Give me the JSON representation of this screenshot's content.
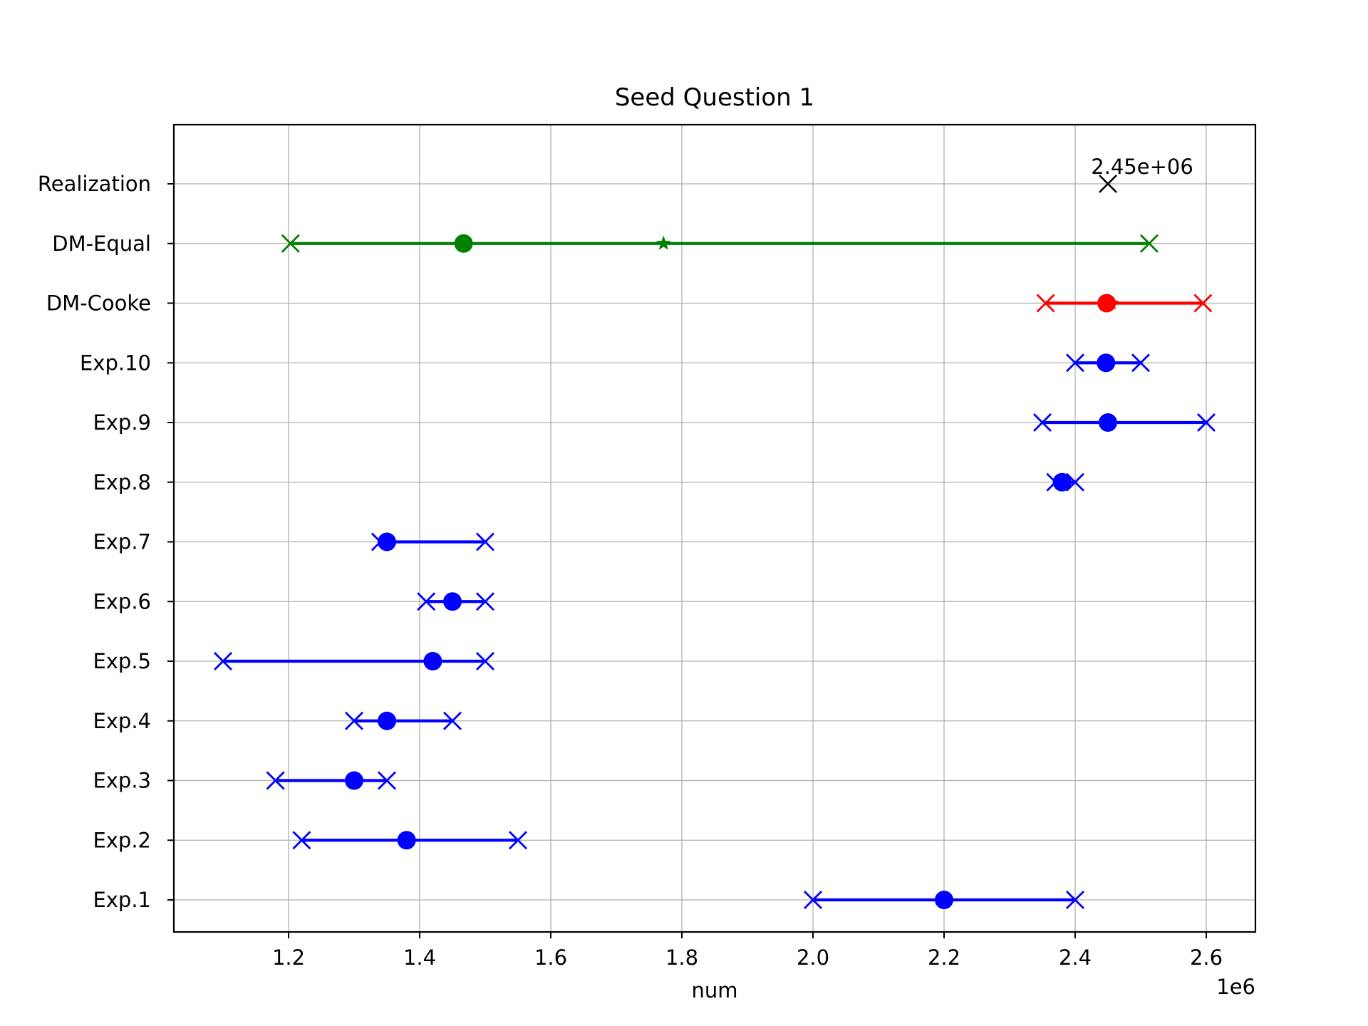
{
  "chart_data": {
    "type": "scatter",
    "title": "Seed Question 1",
    "xlabel": "num",
    "ylabel": "",
    "x_offset_label": "1e6",
    "xlim": [
      1025000,
      2675000
    ],
    "x_ticks": [
      1200000,
      1400000,
      1600000,
      1800000,
      2000000,
      2200000,
      2400000,
      2600000
    ],
    "x_tick_labels": [
      "1.2",
      "1.4",
      "1.6",
      "1.8",
      "2.0",
      "2.2",
      "2.4",
      "2.6"
    ],
    "grid": true,
    "categories": [
      "Exp.1",
      "Exp.2",
      "Exp.3",
      "Exp.4",
      "Exp.5",
      "Exp.6",
      "Exp.7",
      "Exp.8",
      "Exp.9",
      "Exp.10",
      "DM-Cooke",
      "DM-Equal",
      "Realization"
    ],
    "rows": [
      {
        "label": "Exp.1",
        "low": 2000000,
        "median": 2200000,
        "high": 2400000,
        "color": "#0000ff"
      },
      {
        "label": "Exp.2",
        "low": 1220000,
        "median": 1380000,
        "high": 1550000,
        "color": "#0000ff"
      },
      {
        "label": "Exp.3",
        "low": 1180000,
        "median": 1300000,
        "high": 1350000,
        "color": "#0000ff"
      },
      {
        "label": "Exp.4",
        "low": 1300000,
        "median": 1350000,
        "high": 1450000,
        "color": "#0000ff"
      },
      {
        "label": "Exp.5",
        "low": 1100000,
        "median": 1420000,
        "high": 1500000,
        "color": "#0000ff"
      },
      {
        "label": "Exp.6",
        "low": 1410000,
        "median": 1450000,
        "high": 1500000,
        "color": "#0000ff"
      },
      {
        "label": "Exp.7",
        "low": 1340000,
        "median": 1350000,
        "high": 1500000,
        "color": "#0000ff"
      },
      {
        "label": "Exp.8",
        "low": 2370000,
        "median": 2380000,
        "high": 2400000,
        "color": "#0000ff"
      },
      {
        "label": "Exp.9",
        "low": 2350000,
        "median": 2450000,
        "high": 2600000,
        "color": "#0000ff"
      },
      {
        "label": "Exp.10",
        "low": 2400000,
        "median": 2447000,
        "high": 2500000,
        "color": "#0000ff"
      },
      {
        "label": "DM-Cooke",
        "low": 2355000,
        "median": 2448000,
        "mean": 2455000,
        "high": 2595000,
        "color": "#ff0000"
      },
      {
        "label": "DM-Equal",
        "low": 1203000,
        "median": 1467000,
        "mean": 1772000,
        "high": 2513000,
        "color": "#008000"
      }
    ],
    "realization": {
      "label": "Realization",
      "value": 2450000,
      "annotation": "2.45e+06",
      "color": "#000000"
    }
  }
}
